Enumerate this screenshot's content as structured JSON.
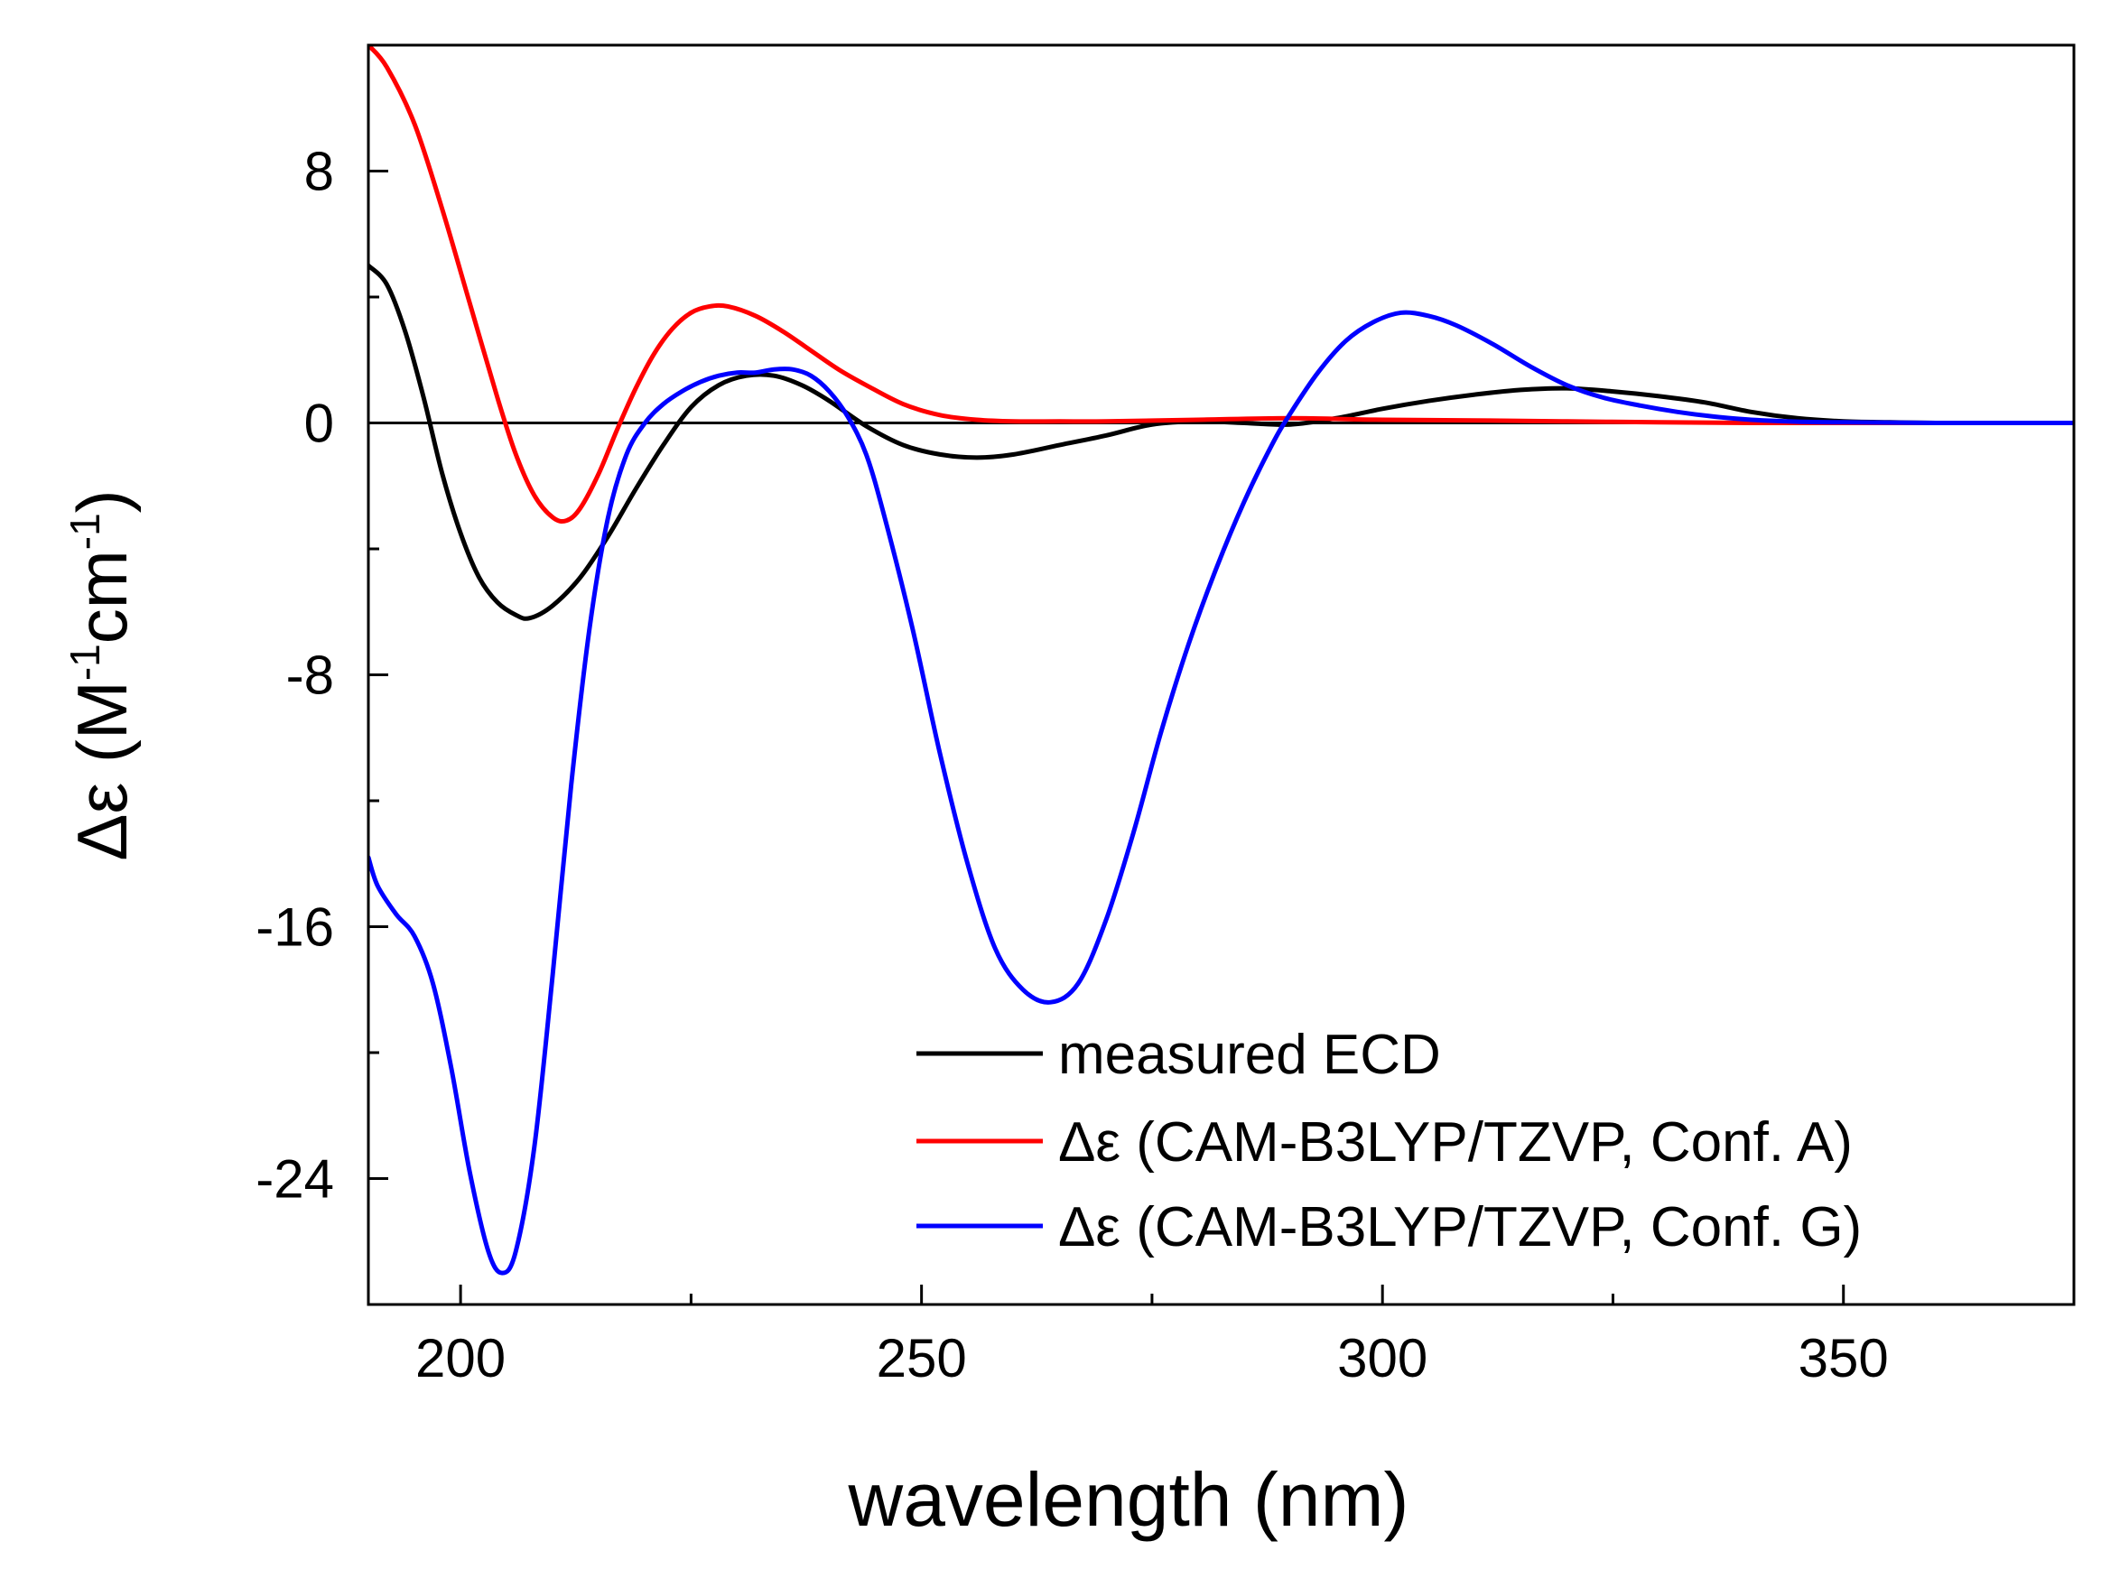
{
  "chart_data": {
    "type": "line",
    "title": "",
    "xlabel": "wavelength (nm)",
    "ylabel_main": "Δε (M",
    "ylabel_sup1": "-1",
    "ylabel_mid": "cm",
    "ylabel_sup2": "-1",
    "ylabel_end": ")",
    "xlim": [
      190,
      375
    ],
    "ylim": [
      -28,
      12
    ],
    "x_ticks": [
      200,
      250,
      300,
      350
    ],
    "x_tick_labels": [
      "200",
      "250",
      "300",
      "350"
    ],
    "x_minor_ticks": [
      225,
      275,
      325,
      375
    ],
    "y_ticks": [
      8,
      0,
      -8,
      -16,
      -24
    ],
    "y_tick_labels": [
      "8",
      "0",
      "-8",
      "-16",
      "-24"
    ],
    "y_minor_ticks": [
      4,
      -4,
      -12,
      -20
    ],
    "zero_line": true,
    "legend_position": "bottom-right",
    "series": [
      {
        "name": "measured ECD",
        "color": "#000000",
        "x": [
          190,
          192,
          194,
          196,
          198,
          200,
          202,
          204,
          206,
          207.5,
          210,
          213,
          216,
          219,
          222,
          225,
          228,
          231,
          234,
          237,
          240,
          244,
          248,
          252,
          256,
          260,
          265,
          270,
          275,
          280,
          285,
          290,
          295,
          300,
          305,
          310,
          315,
          320,
          325,
          330,
          335,
          340,
          345,
          350,
          355,
          360,
          364
        ],
        "y": [
          5.0,
          4.4,
          2.9,
          0.8,
          -1.6,
          -3.5,
          -4.9,
          -5.7,
          -6.1,
          -6.2,
          -5.8,
          -4.9,
          -3.6,
          -2.1,
          -0.7,
          0.5,
          1.2,
          1.5,
          1.5,
          1.2,
          0.7,
          -0.1,
          -0.7,
          -1.0,
          -1.1,
          -1.0,
          -0.7,
          -0.4,
          -0.05,
          0.05,
          0.0,
          -0.05,
          0.15,
          0.45,
          0.7,
          0.9,
          1.05,
          1.1,
          1.0,
          0.85,
          0.65,
          0.35,
          0.15,
          0.05,
          0.02,
          0.0,
          0.0
        ]
      },
      {
        "name": "Δε (CAM-B3LYP/TZVP, Conf. A)",
        "color": "#ff0000",
        "x": [
          190,
          192,
          195,
          198,
          201,
          204,
          206,
          208,
          210,
          211.5,
          213,
          215,
          217,
          219,
          221,
          223,
          225,
          227,
          229,
          232,
          235,
          238,
          241,
          244,
          248,
          252,
          256,
          260,
          265,
          270,
          280,
          290,
          300,
          310,
          320,
          330,
          340,
          350,
          360,
          375
        ],
        "y": [
          12.0,
          11.3,
          9.5,
          6.8,
          3.8,
          0.8,
          -1.0,
          -2.3,
          -3.0,
          -3.1,
          -2.7,
          -1.6,
          -0.2,
          1.1,
          2.2,
          3.0,
          3.5,
          3.7,
          3.7,
          3.4,
          2.9,
          2.3,
          1.7,
          1.2,
          0.6,
          0.25,
          0.1,
          0.05,
          0.05,
          0.05,
          0.1,
          0.15,
          0.1,
          0.08,
          0.05,
          0.02,
          0.0,
          0.0,
          0.0,
          0.0
        ]
      },
      {
        "name": "Δε (CAM-B3LYP/TZVP, Conf. G)",
        "color": "#0000ff",
        "x": [
          190,
          191,
          193,
          195,
          197,
          199,
          201,
          203,
          204.5,
          206,
          208,
          210,
          212,
          214,
          216,
          218,
          220,
          222,
          224,
          226,
          228,
          230,
          232,
          234,
          236,
          238,
          240,
          242,
          244,
          246,
          249,
          252,
          255,
          258,
          261,
          264,
          267,
          270,
          273,
          276,
          279,
          282,
          285,
          288,
          290,
          293,
          296,
          299,
          302,
          305,
          308,
          312,
          316,
          320,
          324,
          328,
          332,
          336,
          340,
          345,
          350,
          360,
          375
        ],
        "y": [
          -13.8,
          -14.7,
          -15.6,
          -16.3,
          -17.8,
          -20.5,
          -23.8,
          -26.3,
          -27.0,
          -26.3,
          -23.0,
          -17.5,
          -11.5,
          -6.5,
          -3.0,
          -1.0,
          0.0,
          0.6,
          1.0,
          1.3,
          1.5,
          1.6,
          1.6,
          1.7,
          1.7,
          1.5,
          1.0,
          0.2,
          -1.0,
          -3.0,
          -6.5,
          -10.5,
          -14.0,
          -16.7,
          -18.0,
          -18.4,
          -17.8,
          -15.8,
          -13.0,
          -9.8,
          -7.0,
          -4.6,
          -2.5,
          -0.7,
          0.3,
          1.6,
          2.6,
          3.2,
          3.5,
          3.4,
          3.1,
          2.5,
          1.8,
          1.2,
          0.8,
          0.55,
          0.35,
          0.2,
          0.1,
          0.04,
          0.02,
          0.0,
          0.0
        ]
      }
    ]
  },
  "legend": {
    "items": [
      {
        "label": "measured ECD",
        "color": "#000000"
      },
      {
        "label": "Δε (CAM-B3LYP/TZVP, Conf. A)",
        "color": "#ff0000"
      },
      {
        "label": "Δε (CAM-B3LYP/TZVP, Conf. G)",
        "color": "#0000ff"
      }
    ]
  }
}
